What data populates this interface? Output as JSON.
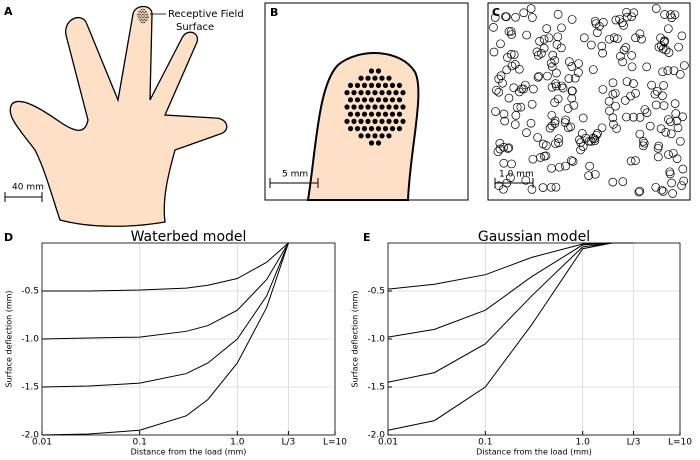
{
  "panels": [
    {
      "label": "A",
      "annotation": [
        "Receptive Field",
        "Surface"
      ],
      "scale": "40 mm"
    },
    {
      "label": "B",
      "scale": "5 mm"
    },
    {
      "label": "C",
      "scale": "1.0 mm"
    }
  ],
  "chart_data": [
    {
      "type": "line",
      "panel": "D",
      "title": "Waterbed model",
      "x_label": "Distance from the load (mm)",
      "y_label": "Surface deflection (mm)",
      "xscale": "log",
      "grid": true,
      "x": [
        0.01,
        0.03,
        0.1,
        0.3,
        0.5,
        1.0,
        2.0,
        3.333
      ],
      "series": [
        {
          "color": "#000000",
          "values": [
            -0.5,
            -0.5,
            -0.49,
            -0.47,
            -0.44,
            -0.37,
            -0.2,
            0
          ]
        },
        {
          "color": "#000000",
          "values": [
            -1.0,
            -0.99,
            -0.98,
            -0.92,
            -0.86,
            -0.7,
            -0.38,
            0
          ]
        },
        {
          "color": "#000000",
          "values": [
            -1.5,
            -1.49,
            -1.46,
            -1.36,
            -1.25,
            -1.0,
            -0.55,
            0
          ]
        },
        {
          "color": "#000000",
          "values": [
            -2.0,
            -1.99,
            -1.95,
            -1.8,
            -1.63,
            -1.25,
            -0.67,
            0
          ]
        }
      ],
      "xlim": [
        0.01,
        10
      ],
      "xticks": [
        0.01,
        0.1,
        {
          "value": 1.0,
          "label": "1.0"
        },
        {
          "value": 3.333,
          "label": "L/3"
        },
        {
          "value": 10,
          "label": "L=10"
        }
      ],
      "ylim": [
        -2.0,
        0
      ],
      "yticks": [
        {
          "value": -2.0,
          "label": "-2.0"
        },
        -1.5,
        {
          "value": -1.0,
          "label": "-1.0"
        },
        -0.5
      ]
    },
    {
      "type": "line",
      "panel": "E",
      "title": "Gaussian model",
      "x_label": "Distance from the load (mm)",
      "y_label": "Surface deflection (mm)",
      "xscale": "log",
      "grid": true,
      "x": [
        0.01,
        0.03,
        0.1,
        0.3,
        1.0,
        2.0,
        3.333
      ],
      "series": [
        {
          "color": "#000000",
          "values": [
            -0.48,
            -0.43,
            -0.33,
            -0.15,
            -0.01,
            0,
            0
          ]
        },
        {
          "color": "#000000",
          "values": [
            -0.98,
            -0.9,
            -0.7,
            -0.35,
            -0.02,
            0,
            0
          ]
        },
        {
          "color": "#000000",
          "values": [
            -1.45,
            -1.35,
            -1.05,
            -0.55,
            -0.04,
            0,
            0
          ]
        },
        {
          "color": "#000000",
          "values": [
            -1.95,
            -1.85,
            -1.5,
            -0.85,
            -0.06,
            0,
            0
          ]
        }
      ],
      "xlim": [
        0.01,
        10
      ],
      "xticks": [
        0.01,
        0.1,
        {
          "value": 1.0,
          "label": "1.0"
        },
        {
          "value": 3.333,
          "label": "L/3"
        },
        {
          "value": 10,
          "label": "L=10"
        }
      ],
      "ylim": [
        -2.0,
        0
      ],
      "yticks": [
        {
          "value": -2.0,
          "label": "-2.0"
        },
        -1.5,
        {
          "value": -1.0,
          "label": "-1.0"
        },
        -0.5
      ]
    }
  ]
}
